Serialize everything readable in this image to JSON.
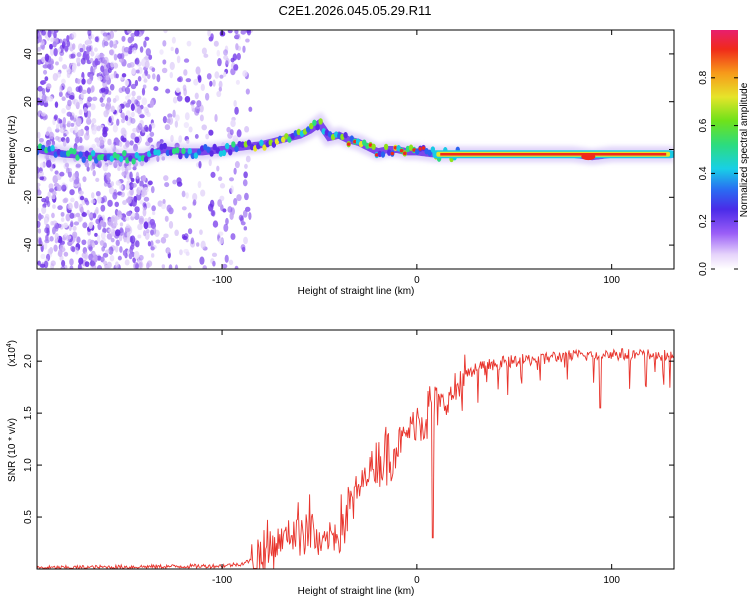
{
  "title": "C2E1.2026.045.05.29.R11",
  "chart_data": [
    {
      "type": "heatmap",
      "name": "spectrogram",
      "xlabel": "Height of straight line (km)",
      "ylabel": "Frequency (Hz)",
      "xlim": [
        -195,
        132
      ],
      "ylim": [
        -50,
        50
      ],
      "x_ticks": [
        -100,
        0,
        100
      ],
      "x_tick_labels": [
        "-100",
        "0",
        "100"
      ],
      "y_ticks": [
        40,
        20,
        0,
        -20,
        -40
      ],
      "y_tick_labels": [
        "40",
        "20",
        "0",
        "-20",
        "-40"
      ],
      "ridge_x": [
        -195,
        -180,
        -160,
        -140,
        -130,
        -120,
        -110,
        -100,
        -90,
        -80,
        -70,
        -60,
        -55,
        -50,
        -45,
        -40,
        -35,
        -30,
        -25,
        -20,
        -15,
        -10,
        -5,
        0,
        10,
        20,
        40,
        60,
        80,
        90,
        100,
        110,
        120,
        132
      ],
      "ridge_y": [
        0,
        -2,
        -3,
        -3,
        0,
        -1,
        -1,
        0,
        1,
        2,
        4,
        6,
        8,
        11,
        5,
        6,
        4,
        3,
        1,
        -1,
        0,
        0,
        -1,
        -1,
        -2,
        -2,
        -2,
        -2,
        -2,
        -3,
        -2,
        -2,
        -2,
        -2
      ],
      "colorbar": {
        "label": "Normalized spectral amplitude",
        "range": [
          0,
          1
        ],
        "ticks": [
          0.0,
          0.2,
          0.4,
          0.6,
          0.8
        ],
        "tick_labels": [
          "0.0",
          "0.2",
          "0.4",
          "0.6",
          "0.8"
        ]
      }
    },
    {
      "type": "line",
      "name": "snr",
      "xlabel": "Height of straight line (km)",
      "ylabel": "SNR (10 * v/v)",
      "y_scale_label": "(x10",
      "y_scale_exp": "4",
      "xlim": [
        -195,
        132
      ],
      "ylim": [
        0,
        2.3
      ],
      "x_ticks": [
        -100,
        0,
        100
      ],
      "x_tick_labels": [
        "-100",
        "0",
        "100"
      ],
      "y_ticks": [
        0.5,
        1.0,
        1.5,
        2.0
      ],
      "y_tick_labels": [
        "0.5",
        "1.0",
        "1.5",
        "2.0"
      ],
      "series": [
        {
          "name": "SNR",
          "color": "#e8342c",
          "x": [
            -195,
            -150,
            -100,
            -90,
            -80,
            -75,
            -70,
            -65,
            -60,
            -55,
            -50,
            -45,
            -40,
            -35,
            -30,
            -25,
            -20,
            -15,
            -10,
            -5,
            0,
            5,
            10,
            15,
            20,
            25,
            30,
            40,
            50,
            60,
            70,
            80,
            90,
            100,
            110,
            120,
            132
          ],
          "y": [
            0.01,
            0.02,
            0.03,
            0.05,
            0.12,
            0.2,
            0.28,
            0.35,
            0.4,
            0.45,
            0.2,
            0.3,
            0.4,
            0.55,
            0.75,
            0.95,
            1.05,
            1.1,
            1.2,
            1.3,
            1.45,
            1.5,
            1.55,
            1.6,
            1.72,
            1.85,
            1.93,
            1.98,
            2.0,
            2.02,
            2.04,
            2.05,
            2.06,
            2.07,
            2.06,
            2.06,
            2.05
          ]
        }
      ]
    }
  ]
}
